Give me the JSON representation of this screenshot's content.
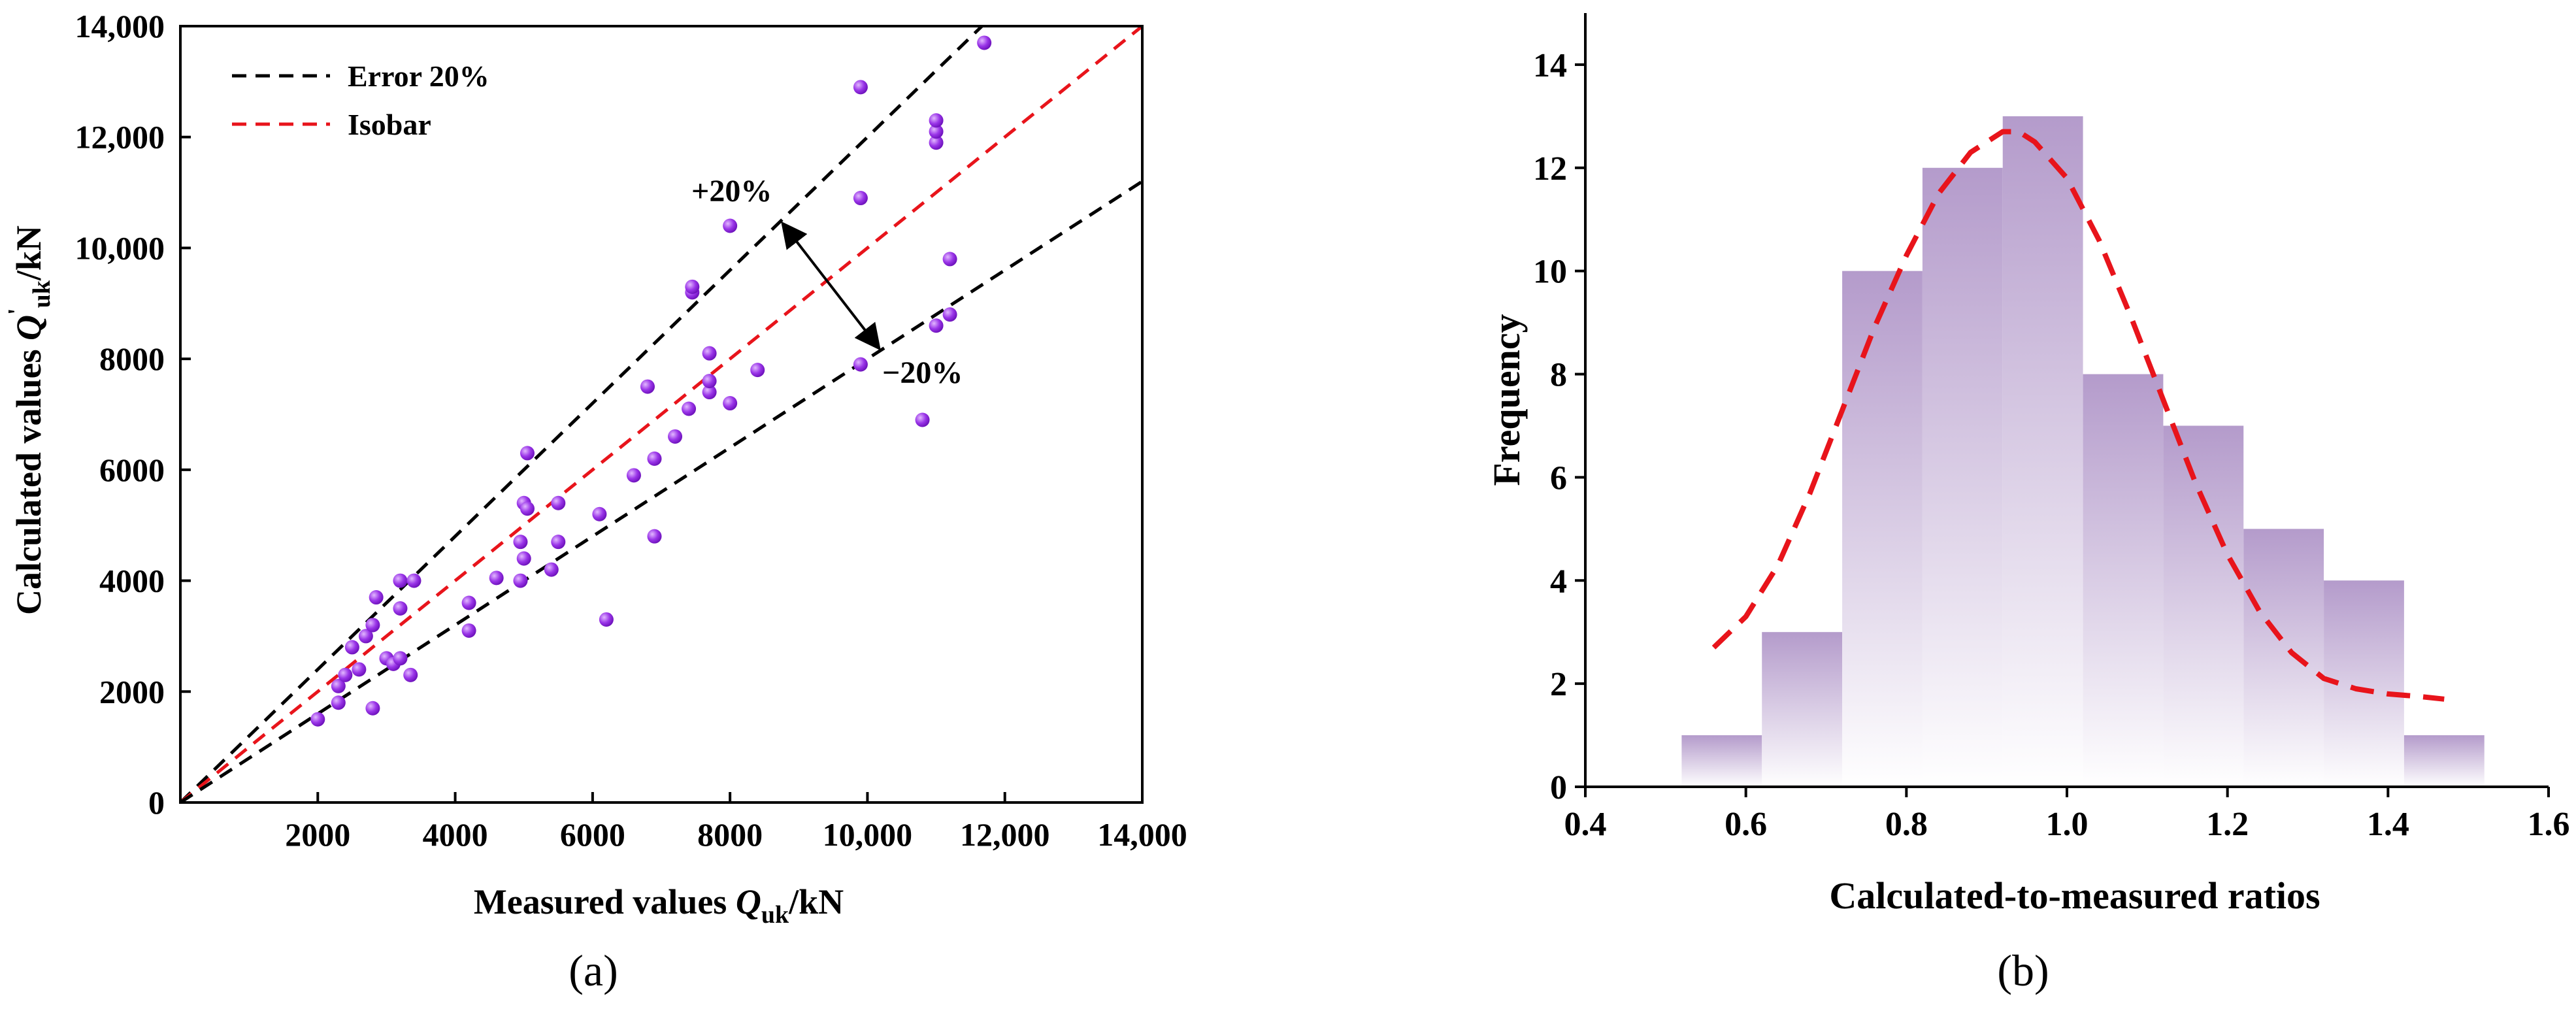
{
  "chart_data": [
    {
      "type": "scatter",
      "panel": "(a)",
      "xlabel": "Measured values Q_uk/kN",
      "ylabel": "Calculated values Q'_uk/kN",
      "xlim": [
        0,
        14000
      ],
      "ylim": [
        0,
        14000
      ],
      "xticks": [
        2000,
        4000,
        6000,
        8000,
        10000,
        12000,
        14000
      ],
      "xtick_labels": [
        "2000",
        "4000",
        "6000",
        "8000",
        "10,000",
        "12,000",
        "14,000"
      ],
      "yticks": [
        0,
        2000,
        4000,
        6000,
        8000,
        10000,
        12000,
        14000
      ],
      "ytick_labels": [
        "0",
        "2000",
        "4000",
        "6000",
        "8000",
        "10,000",
        "12,000",
        "14,000"
      ],
      "legend": [
        {
          "label": "Error 20%",
          "color": "#000000",
          "style": "dashed"
        },
        {
          "label": "Isobar",
          "color": "#e8141b",
          "style": "dashed"
        }
      ],
      "legend_position": "top-left",
      "lines": [
        {
          "name": "+20%",
          "slope": 1.2,
          "color": "#000000"
        },
        {
          "name": "Isobar",
          "slope": 1.0,
          "color": "#e8141b"
        },
        {
          "name": "-20%",
          "slope": 0.8,
          "color": "#000000"
        }
      ],
      "annotations": [
        "+20%",
        "−20%"
      ],
      "point_color": "#8a2be2",
      "points": [
        [
          2000,
          1500
        ],
        [
          2300,
          1800
        ],
        [
          2300,
          2100
        ],
        [
          2400,
          2300
        ],
        [
          2500,
          2800
        ],
        [
          2600,
          2400
        ],
        [
          2700,
          3000
        ],
        [
          2800,
          1700
        ],
        [
          2800,
          3200
        ],
        [
          2850,
          3700
        ],
        [
          3000,
          2600
        ],
        [
          3100,
          2500
        ],
        [
          3200,
          2600
        ],
        [
          3200,
          3500
        ],
        [
          3200,
          4000
        ],
        [
          3350,
          2300
        ],
        [
          3400,
          4000
        ],
        [
          4200,
          3100
        ],
        [
          4200,
          3600
        ],
        [
          4600,
          4050
        ],
        [
          4950,
          4000
        ],
        [
          4950,
          4700
        ],
        [
          5000,
          4400
        ],
        [
          5000,
          5400
        ],
        [
          5050,
          5300
        ],
        [
          5050,
          6300
        ],
        [
          5400,
          4200
        ],
        [
          5500,
          4700
        ],
        [
          5500,
          5400
        ],
        [
          6100,
          5200
        ],
        [
          6200,
          3300
        ],
        [
          6600,
          5900
        ],
        [
          6800,
          7500
        ],
        [
          6900,
          6200
        ],
        [
          6900,
          4800
        ],
        [
          7200,
          6600
        ],
        [
          7400,
          7100
        ],
        [
          7450,
          9200
        ],
        [
          7450,
          9300
        ],
        [
          7700,
          7400
        ],
        [
          7700,
          7600
        ],
        [
          7700,
          8100
        ],
        [
          8000,
          7200
        ],
        [
          8000,
          10400
        ],
        [
          8400,
          7800
        ],
        [
          9900,
          7900
        ],
        [
          9900,
          10900
        ],
        [
          9900,
          12900
        ],
        [
          10800,
          6900
        ],
        [
          11000,
          8600
        ],
        [
          11000,
          11900
        ],
        [
          11000,
          12100
        ],
        [
          11000,
          12300
        ],
        [
          11200,
          9800
        ],
        [
          11200,
          8800
        ],
        [
          11700,
          13700
        ]
      ]
    },
    {
      "type": "bar",
      "panel": "(b)",
      "xlabel": "Calculated-to-measured ratios",
      "ylabel": "Frequency",
      "xlim": [
        0.4,
        1.6
      ],
      "ylim": [
        0,
        15
      ],
      "xticks": [
        0.4,
        0.6,
        0.8,
        1.0,
        1.2,
        1.4,
        1.6
      ],
      "xtick_labels": [
        "0.4",
        "0.6",
        "0.8",
        "1.0",
        "1.2",
        "1.4",
        "1.6"
      ],
      "yticks": [
        0,
        2,
        4,
        6,
        8,
        10,
        12,
        14
      ],
      "ytick_labels": [
        "0",
        "2",
        "4",
        "6",
        "8",
        "10",
        "12",
        "14"
      ],
      "bins": [
        {
          "start": 0.52,
          "end": 0.62,
          "value": 1
        },
        {
          "start": 0.62,
          "end": 0.72,
          "value": 3
        },
        {
          "start": 0.72,
          "end": 0.82,
          "value": 10
        },
        {
          "start": 0.82,
          "end": 0.92,
          "value": 12
        },
        {
          "start": 0.92,
          "end": 1.02,
          "value": 13
        },
        {
          "start": 1.02,
          "end": 1.12,
          "value": 8
        },
        {
          "start": 1.12,
          "end": 1.22,
          "value": 7
        },
        {
          "start": 1.22,
          "end": 1.32,
          "value": 5
        },
        {
          "start": 1.32,
          "end": 1.42,
          "value": 4
        },
        {
          "start": 1.42,
          "end": 1.52,
          "value": 1
        }
      ],
      "bar_color": "#b49bcb",
      "fit_curve": {
        "type": "normal",
        "color": "#e8141b",
        "style": "dashed",
        "x": [
          0.56,
          0.6,
          0.64,
          0.68,
          0.72,
          0.76,
          0.8,
          0.84,
          0.88,
          0.92,
          0.94,
          0.96,
          1.0,
          1.04,
          1.08,
          1.12,
          1.16,
          1.2,
          1.24,
          1.28,
          1.32,
          1.36,
          1.4,
          1.44,
          1.47
        ],
        "y": [
          2.7,
          3.3,
          4.3,
          5.7,
          7.3,
          8.9,
          10.3,
          11.5,
          12.3,
          12.7,
          12.7,
          12.5,
          11.8,
          10.6,
          9.1,
          7.5,
          5.9,
          4.5,
          3.4,
          2.6,
          2.1,
          1.9,
          1.8,
          1.75,
          1.7
        ]
      }
    }
  ]
}
